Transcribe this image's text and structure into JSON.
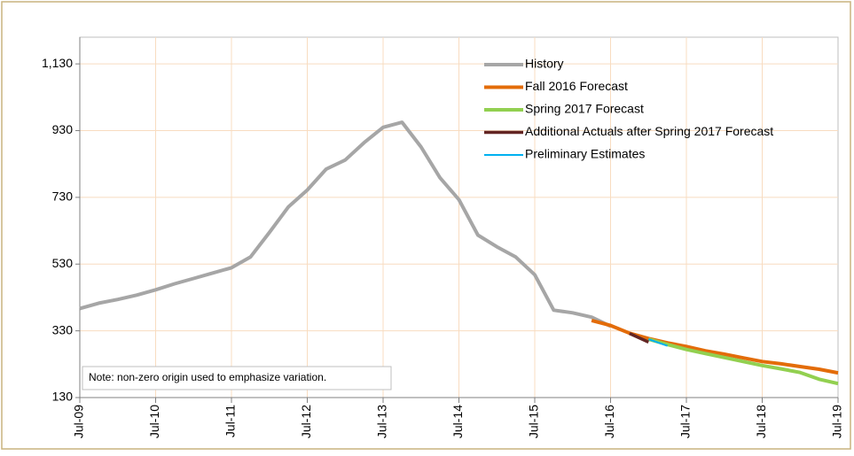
{
  "chart_data": {
    "type": "line",
    "categories": [
      "Jul-09",
      null,
      null,
      null,
      "Jul-10",
      null,
      null,
      null,
      "Jul-11",
      null,
      null,
      null,
      "Jul-12",
      null,
      null,
      null,
      "Jul-13",
      null,
      null,
      null,
      "Jul-14",
      null,
      null,
      null,
      "Jul-15",
      null,
      null,
      null,
      "Jul-16",
      null,
      null,
      null,
      "Jul-17",
      null,
      null,
      null,
      "Jul-18",
      null,
      null,
      null,
      "Jul-19"
    ],
    "series": [
      {
        "name": "History",
        "color": "#a6a6a6",
        "values": [
          397,
          413,
          424,
          437,
          453,
          471,
          487,
          503,
          519,
          551,
          625,
          701,
          752,
          815,
          842,
          894,
          940,
          955,
          881,
          789,
          723,
          617,
          582,
          551,
          498,
          392,
          384,
          371,
          344,
          null,
          null,
          null,
          null,
          null,
          null,
          null,
          null,
          null,
          null,
          null,
          null
        ]
      },
      {
        "name": "Fall 2016 Forecast",
        "color": "#e36c09",
        "values": [
          null,
          null,
          null,
          null,
          null,
          null,
          null,
          null,
          null,
          null,
          null,
          null,
          null,
          null,
          null,
          null,
          null,
          null,
          null,
          null,
          null,
          null,
          null,
          null,
          null,
          null,
          null,
          361,
          346,
          323,
          307,
          294,
          283,
          270,
          260,
          249,
          238,
          231,
          223,
          215,
          204
        ]
      },
      {
        "name": "Spring 2017 Forecast",
        "color": "#92d050",
        "values": [
          null,
          null,
          null,
          null,
          null,
          null,
          null,
          null,
          null,
          null,
          null,
          null,
          null,
          null,
          null,
          null,
          null,
          null,
          null,
          null,
          null,
          null,
          null,
          null,
          null,
          null,
          null,
          null,
          null,
          null,
          305,
          289,
          274,
          262,
          250,
          238,
          226,
          216,
          205,
          185,
          172
        ]
      },
      {
        "name": "Additional Actuals after Spring 2017 Forecast",
        "color": "#632523",
        "values": [
          null,
          null,
          null,
          null,
          null,
          null,
          null,
          null,
          null,
          null,
          null,
          null,
          null,
          null,
          null,
          null,
          null,
          null,
          null,
          null,
          null,
          null,
          null,
          null,
          null,
          null,
          null,
          null,
          null,
          322,
          296,
          null,
          null,
          null,
          null,
          null,
          null,
          null,
          null,
          null,
          null
        ]
      },
      {
        "name": "Preliminary Estimates",
        "color": "#00b0f0",
        "values": [
          null,
          null,
          null,
          null,
          null,
          null,
          null,
          null,
          null,
          null,
          null,
          null,
          null,
          null,
          null,
          null,
          null,
          null,
          null,
          null,
          null,
          null,
          null,
          null,
          null,
          null,
          null,
          null,
          null,
          null,
          305,
          285,
          null,
          null,
          null,
          null,
          null,
          null,
          null,
          null,
          null
        ]
      }
    ],
    "ylim": [
      130,
      1210
    ],
    "yticks": [
      130,
      330,
      530,
      730,
      930,
      {
        "value": 1130,
        "label": "1,130"
      }
    ],
    "grid": true,
    "legend": "top-right",
    "annotations": [
      "Note: non-zero origin used to emphasize variation."
    ]
  }
}
